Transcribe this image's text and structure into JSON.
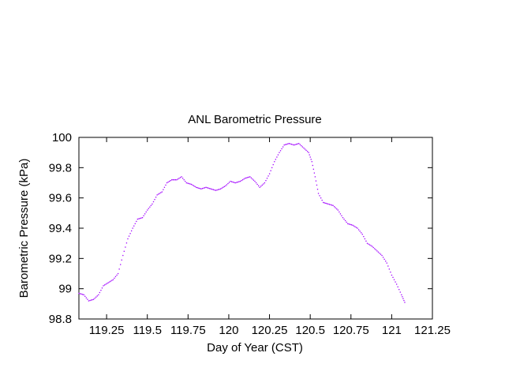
{
  "chart_data": {
    "type": "scatter",
    "title": "ANL Barometric Pressure",
    "xlabel": "Day of Year  (CST)",
    "ylabel": "Barometric Pressure  (kPa)",
    "xlim": [
      119.08,
      121.25
    ],
    "ylim": [
      98.8,
      100
    ],
    "x_ticks": [
      {
        "value": 119.25,
        "label": "119.25"
      },
      {
        "value": 119.5,
        "label": "119.5"
      },
      {
        "value": 119.75,
        "label": "119.75"
      },
      {
        "value": 120,
        "label": "120"
      },
      {
        "value": 120.25,
        "label": "120.25"
      },
      {
        "value": 120.5,
        "label": "120.5"
      },
      {
        "value": 120.75,
        "label": "120.75"
      },
      {
        "value": 121,
        "label": "121"
      },
      {
        "value": 121.25,
        "label": "121.25"
      }
    ],
    "y_ticks": [
      {
        "value": 98.8,
        "label": "98.8"
      },
      {
        "value": 99,
        "label": "99"
      },
      {
        "value": 99.2,
        "label": "99.2"
      },
      {
        "value": 99.4,
        "label": "99.4"
      },
      {
        "value": 99.6,
        "label": "99.6"
      },
      {
        "value": 99.8,
        "label": "99.8"
      },
      {
        "value": 100,
        "label": "100"
      }
    ],
    "grid": false,
    "marker_color": "#a000ff",
    "series": [
      {
        "points": [
          [
            119.08,
            98.97
          ],
          [
            119.11,
            98.96
          ],
          [
            119.14,
            98.92
          ],
          [
            119.17,
            98.93
          ],
          [
            119.2,
            98.96
          ],
          [
            119.23,
            99.02
          ],
          [
            119.26,
            99.04
          ],
          [
            119.29,
            99.06
          ],
          [
            119.32,
            99.1
          ],
          [
            119.35,
            99.22
          ],
          [
            119.38,
            99.33
          ],
          [
            119.41,
            99.4
          ],
          [
            119.44,
            99.46
          ],
          [
            119.47,
            99.47
          ],
          [
            119.5,
            99.52
          ],
          [
            119.53,
            99.56
          ],
          [
            119.56,
            99.62
          ],
          [
            119.59,
            99.64
          ],
          [
            119.62,
            99.7
          ],
          [
            119.65,
            99.72
          ],
          [
            119.68,
            99.72
          ],
          [
            119.71,
            99.74
          ],
          [
            119.74,
            99.7
          ],
          [
            119.77,
            99.69
          ],
          [
            119.8,
            99.67
          ],
          [
            119.83,
            99.66
          ],
          [
            119.86,
            99.67
          ],
          [
            119.89,
            99.66
          ],
          [
            119.92,
            99.65
          ],
          [
            119.95,
            99.66
          ],
          [
            119.98,
            99.68
          ],
          [
            120.01,
            99.71
          ],
          [
            120.04,
            99.7
          ],
          [
            120.07,
            99.71
          ],
          [
            120.1,
            99.73
          ],
          [
            120.13,
            99.74
          ],
          [
            120.16,
            99.71
          ],
          [
            120.19,
            99.67
          ],
          [
            120.22,
            99.7
          ],
          [
            120.25,
            99.76
          ],
          [
            120.28,
            99.84
          ],
          [
            120.31,
            99.9
          ],
          [
            120.34,
            99.95
          ],
          [
            120.37,
            99.96
          ],
          [
            120.4,
            99.95
          ],
          [
            120.43,
            99.96
          ],
          [
            120.46,
            99.93
          ],
          [
            120.49,
            99.9
          ],
          [
            120.51,
            99.84
          ],
          [
            120.53,
            99.74
          ],
          [
            120.55,
            99.63
          ],
          [
            120.58,
            99.57
          ],
          [
            120.61,
            99.56
          ],
          [
            120.64,
            99.55
          ],
          [
            120.67,
            99.52
          ],
          [
            120.7,
            99.47
          ],
          [
            120.73,
            99.43
          ],
          [
            120.76,
            99.42
          ],
          [
            120.79,
            99.4
          ],
          [
            120.82,
            99.36
          ],
          [
            120.85,
            99.3
          ],
          [
            120.88,
            99.28
          ],
          [
            120.91,
            99.25
          ],
          [
            120.94,
            99.22
          ],
          [
            120.97,
            99.17
          ],
          [
            121.0,
            99.09
          ],
          [
            121.03,
            99.03
          ],
          [
            121.06,
            98.96
          ],
          [
            121.08,
            98.91
          ]
        ]
      }
    ]
  }
}
